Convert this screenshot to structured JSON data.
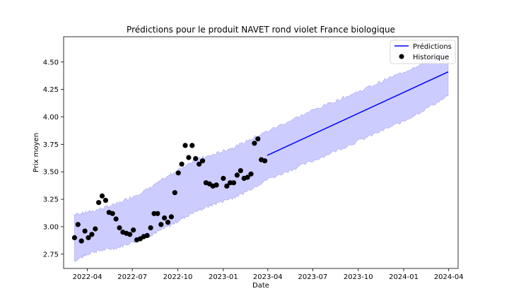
{
  "chart_data": {
    "type": "line",
    "title": "Prédictions pour le produit NAVET rond violet France biologique",
    "xlabel": "Date",
    "ylabel": "Prix moyen",
    "x_range": [
      "2022-02-12",
      "2024-04-20"
    ],
    "ylim": [
      2.62,
      4.73
    ],
    "x_ticks": [
      "2022-04",
      "2022-07",
      "2022-10",
      "2023-01",
      "2023-04",
      "2023-07",
      "2023-10",
      "2024-01",
      "2024-04"
    ],
    "y_ticks": [
      2.75,
      3.0,
      3.25,
      3.5,
      3.75,
      4.0,
      4.25,
      4.5
    ],
    "grid": false,
    "legend": {
      "position": "top-right",
      "entries": [
        {
          "label": "Prédictions",
          "marker": "line",
          "color": "#0000ff"
        },
        {
          "label": "Historique",
          "marker": "dot",
          "color": "#000000"
        }
      ]
    },
    "colors": {
      "prediction_line": "#0000ff",
      "interval_fill": "#ccccff",
      "interval_edge": "#aaaaee",
      "history_points": "#000000"
    },
    "series": [
      {
        "name": "Historique",
        "kind": "scatter",
        "points": [
          [
            "2022-03-06",
            2.9
          ],
          [
            "2022-03-13",
            3.02
          ],
          [
            "2022-03-20",
            2.87
          ],
          [
            "2022-03-27",
            2.96
          ],
          [
            "2022-04-03",
            2.9
          ],
          [
            "2022-04-10",
            2.93
          ],
          [
            "2022-04-17",
            2.98
          ],
          [
            "2022-04-24",
            3.22
          ],
          [
            "2022-05-01",
            3.28
          ],
          [
            "2022-05-08",
            3.24
          ],
          [
            "2022-05-15",
            3.13
          ],
          [
            "2022-05-22",
            3.12
          ],
          [
            "2022-05-29",
            3.07
          ],
          [
            "2022-06-05",
            2.99
          ],
          [
            "2022-06-12",
            2.95
          ],
          [
            "2022-06-19",
            2.94
          ],
          [
            "2022-06-26",
            2.93
          ],
          [
            "2022-07-03",
            2.97
          ],
          [
            "2022-07-10",
            2.88
          ],
          [
            "2022-07-17",
            2.89
          ],
          [
            "2022-07-24",
            2.91
          ],
          [
            "2022-07-31",
            2.92
          ],
          [
            "2022-08-07",
            2.99
          ],
          [
            "2022-08-14",
            3.12
          ],
          [
            "2022-08-21",
            3.12
          ],
          [
            "2022-08-28",
            3.02
          ],
          [
            "2022-09-04",
            3.08
          ],
          [
            "2022-09-11",
            3.04
          ],
          [
            "2022-09-18",
            3.09
          ],
          [
            "2022-09-25",
            3.31
          ],
          [
            "2022-10-02",
            3.49
          ],
          [
            "2022-10-09",
            3.57
          ],
          [
            "2022-10-16",
            3.74
          ],
          [
            "2022-10-23",
            3.63
          ],
          [
            "2022-10-30",
            3.74
          ],
          [
            "2022-11-06",
            3.62
          ],
          [
            "2022-11-13",
            3.57
          ],
          [
            "2022-11-20",
            3.6
          ],
          [
            "2022-11-27",
            3.4
          ],
          [
            "2022-12-04",
            3.39
          ],
          [
            "2022-12-11",
            3.37
          ],
          [
            "2022-12-18",
            3.38
          ],
          [
            "2023-01-01",
            3.44
          ],
          [
            "2023-01-08",
            3.37
          ],
          [
            "2023-01-15",
            3.4
          ],
          [
            "2023-01-22",
            3.4
          ],
          [
            "2023-01-29",
            3.47
          ],
          [
            "2023-02-05",
            3.51
          ],
          [
            "2023-02-12",
            3.44
          ],
          [
            "2023-02-19",
            3.45
          ],
          [
            "2023-02-26",
            3.48
          ],
          [
            "2023-03-05",
            3.76
          ],
          [
            "2023-03-12",
            3.8
          ],
          [
            "2023-03-19",
            3.61
          ],
          [
            "2023-03-26",
            3.6
          ]
        ]
      },
      {
        "name": "Prédictions",
        "kind": "line",
        "points": [
          [
            "2023-03-31",
            3.65
          ],
          [
            "2024-03-31",
            4.41
          ]
        ]
      },
      {
        "name": "interval",
        "kind": "band",
        "points": [
          [
            "2022-03-06",
            2.69,
            3.11
          ],
          [
            "2022-04-10",
            2.77,
            3.14
          ],
          [
            "2022-06-01",
            2.81,
            3.21
          ],
          [
            "2022-08-01",
            2.91,
            3.34
          ],
          [
            "2022-09-15",
            3.01,
            3.47
          ],
          [
            "2022-11-01",
            3.13,
            3.6
          ],
          [
            "2022-12-15",
            3.21,
            3.66
          ],
          [
            "2023-01-31",
            3.28,
            3.74
          ],
          [
            "2023-03-31",
            3.43,
            3.87
          ],
          [
            "2023-07-01",
            3.6,
            4.06
          ],
          [
            "2023-10-01",
            3.78,
            4.23
          ],
          [
            "2024-01-01",
            3.96,
            4.41
          ],
          [
            "2024-03-31",
            4.19,
            4.6
          ]
        ]
      }
    ]
  }
}
